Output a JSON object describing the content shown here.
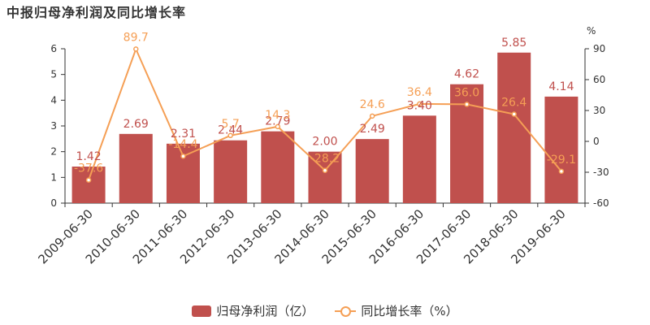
{
  "title": "中报归母净利润及同比增长率",
  "colors": {
    "bar": "#C0504D",
    "line": "#F59F55",
    "axis": "#333333",
    "bar_label": "#C0504D",
    "line_label": "#F59F55"
  },
  "legend": {
    "bar_label": "归母净利润（亿）",
    "line_label": "同比增长率（%）"
  },
  "chart_data": {
    "type": "bar",
    "categories": [
      "2009-06-30",
      "2010-06-30",
      "2011-06-30",
      "2012-06-30",
      "2013-06-30",
      "2014-06-30",
      "2015-06-30",
      "2016-06-30",
      "2017-06-30",
      "2018-06-30",
      "2019-06-30"
    ],
    "series": [
      {
        "name": "归母净利润（亿）",
        "type": "bar",
        "axis": "left",
        "values": [
          1.42,
          2.69,
          2.31,
          2.44,
          2.79,
          2.0,
          2.49,
          3.4,
          4.62,
          5.85,
          4.14
        ],
        "labels": [
          "1.42",
          "2.69",
          "2.31",
          "2.44",
          "2.79",
          "2.00",
          "2.49",
          "3.40",
          "4.62",
          "5.85",
          "4.14"
        ]
      },
      {
        "name": "同比增长率（%）",
        "type": "line",
        "axis": "right",
        "values": [
          -37.6,
          89.7,
          -14.4,
          5.7,
          14.3,
          -28.2,
          24.6,
          36.4,
          36.0,
          26.4,
          -29.1
        ],
        "labels": [
          "-37.6",
          "89.7",
          "-14.4",
          "5.7",
          "14.3",
          "-28.2",
          "24.6",
          "36.4",
          "36.0",
          "26.4",
          "-29.1"
        ]
      }
    ],
    "y_left": {
      "ylim": [
        0,
        6
      ],
      "ticks": [
        "0",
        "1",
        "2",
        "3",
        "4",
        "5",
        "6"
      ]
    },
    "y_right": {
      "ylim": [
        -60,
        90
      ],
      "ticks": [
        "-60",
        "-30",
        "0",
        "30",
        "60",
        "90"
      ],
      "unit": "%"
    },
    "grid": false,
    "legend_position": "bottom"
  }
}
